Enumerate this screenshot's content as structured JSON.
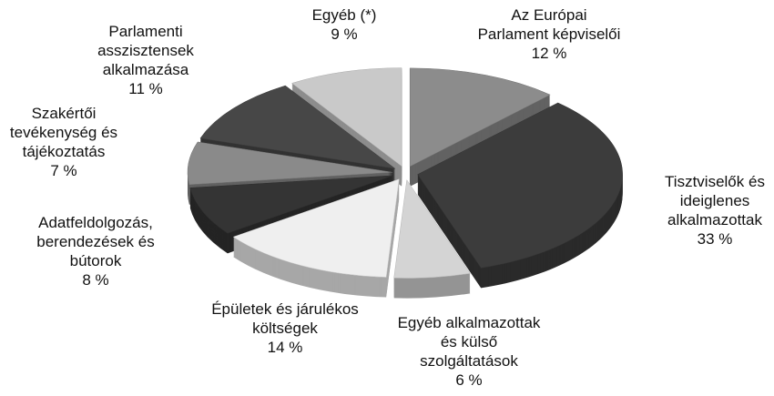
{
  "chart_data": {
    "type": "pie",
    "categories": [
      "Az Európai\nParlament képviselői",
      "Tisztviselők és\nideiglenes\nalkalmazottak",
      "Egyéb alkalmazottak\nés külső\nszolgáltatások",
      "Épületek és járulékos\nköltségek",
      "Adatfeldolgozás,\nberendezések és\nbútorok",
      "Szakértői\ntevékenység és\ntájékoztatás",
      "Parlamenti\nasszisztensek\nalkalmazása",
      "Egyéb (*)"
    ],
    "values": [
      12,
      33,
      6,
      14,
      8,
      7,
      11,
      9
    ],
    "value_labels": [
      "12 %",
      "33 %",
      "6 %",
      "14 %",
      "8 %",
      "7 %",
      "11 %",
      "9 %"
    ],
    "colors": [
      "#8c8c8c",
      "#3c3c3c",
      "#d4d4d4",
      "#efefef",
      "#343434",
      "#8a8a8a",
      "#474747",
      "#c9c9c9"
    ]
  }
}
